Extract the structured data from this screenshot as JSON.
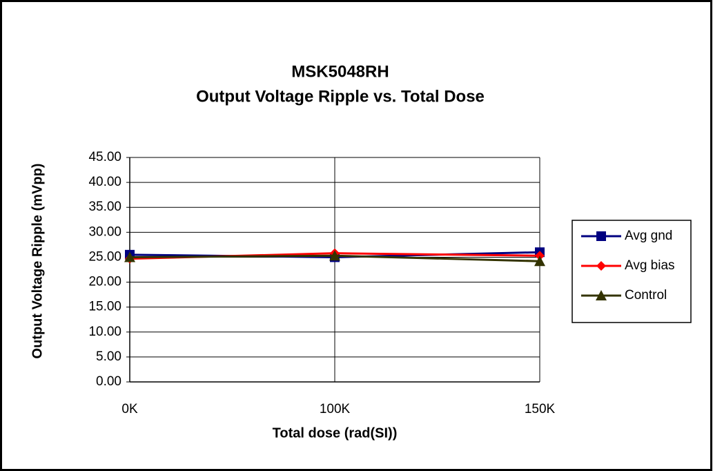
{
  "chart_data": {
    "type": "line",
    "title": [
      "MSK5048RH",
      "Output Voltage Ripple vs. Total Dose"
    ],
    "x_label": "Total dose (rad(SI))",
    "y_label": "Output Voltage Ripple (mVpp)",
    "categories": [
      "0K",
      "100K",
      "150K"
    ],
    "series": [
      {
        "name": "Avg gnd",
        "color": "#000080",
        "marker": "square",
        "values": [
          25.5,
          25.0,
          26.0
        ]
      },
      {
        "name": "Avg bias",
        "color": "#ff0000",
        "marker": "diamond",
        "values": [
          24.7,
          25.8,
          25.3
        ]
      },
      {
        "name": "Control",
        "color": "#333300",
        "marker": "triangle",
        "values": [
          25.0,
          25.3,
          24.2
        ]
      }
    ],
    "ylim": [
      0,
      45
    ],
    "yticks": [
      {
        "value": 0,
        "label": "0.00"
      },
      {
        "value": 5,
        "label": "5.00"
      },
      {
        "value": 10,
        "label": "10.00"
      },
      {
        "value": 15,
        "label": "15.00"
      },
      {
        "value": 20,
        "label": "20.00"
      },
      {
        "value": 25,
        "label": "25.00"
      },
      {
        "value": 30,
        "label": "30.00"
      },
      {
        "value": 35,
        "label": "35.00"
      },
      {
        "value": 40,
        "label": "40.00"
      },
      {
        "value": 45,
        "label": "45.00"
      }
    ],
    "grid": true,
    "legend": "right"
  }
}
